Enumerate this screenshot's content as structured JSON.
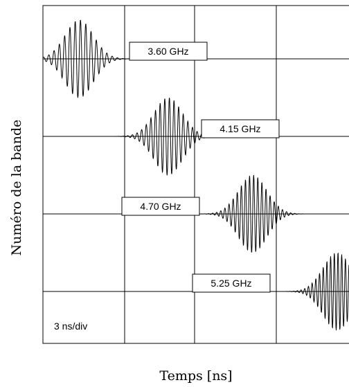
{
  "chart_data": {
    "type": "line",
    "title": "",
    "xlabel": "Temps [ns]",
    "ylabel": "Numéro de la bande",
    "scale_label": "3 ns/div",
    "x_unit": "ns",
    "x_per_div": 3,
    "x_divisions": 4.25,
    "y_divisions": 4.4,
    "grid": true,
    "series": [
      {
        "name": "3.60 GHz",
        "freq_ghz": 3.6,
        "lane": 0.75,
        "center_time_ns": 1.4,
        "envelope_sigma_ns": 0.55,
        "amplitude_div": 0.48,
        "carrier_cycles_visible": 14
      },
      {
        "name": "4.15 GHz",
        "freq_ghz": 4.15,
        "lane": 1.75,
        "center_time_ns": 4.6,
        "envelope_sigma_ns": 0.55,
        "amplitude_div": 0.48,
        "carrier_cycles_visible": 16
      },
      {
        "name": "4.70 GHz",
        "freq_ghz": 4.7,
        "lane": 2.75,
        "center_time_ns": 7.7,
        "envelope_sigma_ns": 0.55,
        "amplitude_div": 0.48,
        "carrier_cycles_visible": 18
      },
      {
        "name": "5.25 GHz",
        "freq_ghz": 5.25,
        "lane": 3.75,
        "center_time_ns": 10.8,
        "envelope_sigma_ns": 0.55,
        "amplitude_div": 0.48,
        "carrier_cycles_visible": 20
      }
    ]
  }
}
